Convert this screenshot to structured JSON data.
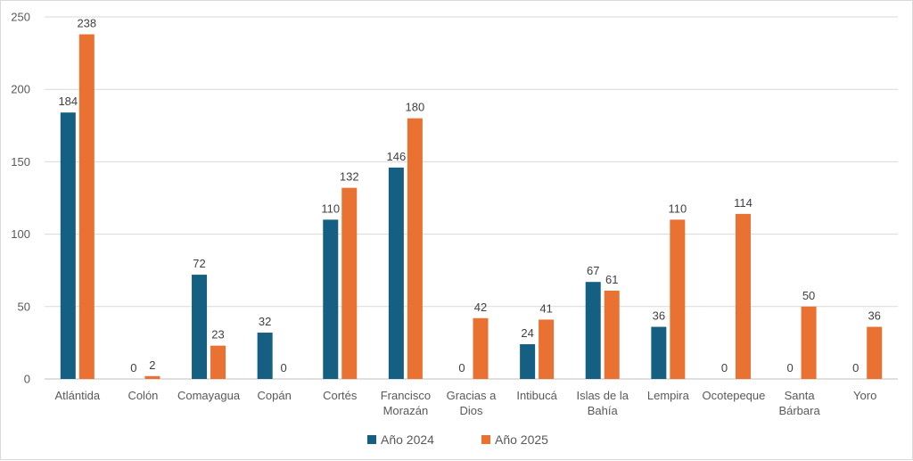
{
  "chart_data": {
    "type": "bar",
    "title": "",
    "xlabel": "",
    "ylabel": "",
    "ylim": [
      0,
      250
    ],
    "yticks": [
      0,
      50,
      100,
      150,
      200,
      250
    ],
    "grid": true,
    "legend_position": "bottom",
    "categories": [
      [
        "Atlántida"
      ],
      [
        "Colón"
      ],
      [
        "Comayagua"
      ],
      [
        "Copán"
      ],
      [
        "Cortés"
      ],
      [
        "Francisco",
        "Morazán"
      ],
      [
        "Gracias a",
        "Dios"
      ],
      [
        "Intibucá"
      ],
      [
        "Islas de la",
        "Bahía"
      ],
      [
        "Lempira"
      ],
      [
        "Ocotepeque"
      ],
      [
        "Santa",
        "Bárbara"
      ],
      [
        "Yoro"
      ]
    ],
    "series": [
      {
        "name": "Año 2024",
        "color": "#156082",
        "values": [
          184,
          0,
          72,
          32,
          110,
          146,
          0,
          24,
          67,
          36,
          0,
          0,
          0
        ]
      },
      {
        "name": "Año 2025",
        "color": "#E97132",
        "values": [
          238,
          2,
          23,
          0,
          132,
          180,
          42,
          41,
          61,
          110,
          114,
          50,
          36
        ]
      }
    ]
  }
}
